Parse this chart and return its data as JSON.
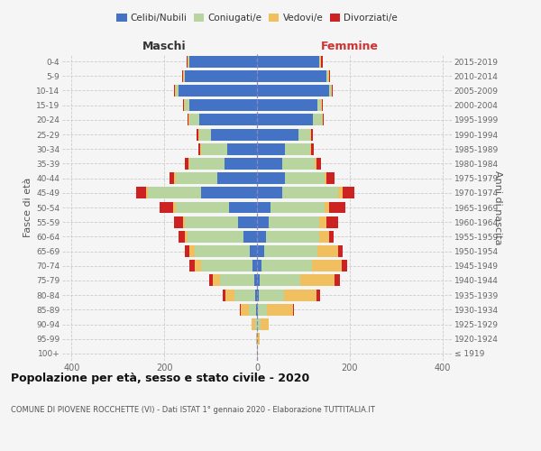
{
  "age_groups": [
    "100+",
    "95-99",
    "90-94",
    "85-89",
    "80-84",
    "75-79",
    "70-74",
    "65-69",
    "60-64",
    "55-59",
    "50-54",
    "45-49",
    "40-44",
    "35-39",
    "30-34",
    "25-29",
    "20-24",
    "15-19",
    "10-14",
    "5-9",
    "0-4"
  ],
  "birth_years": [
    "≤ 1919",
    "1920-1924",
    "1925-1929",
    "1930-1934",
    "1935-1939",
    "1940-1944",
    "1945-1949",
    "1950-1954",
    "1955-1959",
    "1960-1964",
    "1965-1969",
    "1970-1974",
    "1975-1979",
    "1980-1984",
    "1985-1989",
    "1990-1994",
    "1995-1999",
    "2000-2004",
    "2005-2009",
    "2010-2014",
    "2015-2019"
  ],
  "colors": {
    "celibe": "#4472c4",
    "coniugato": "#b8d5a0",
    "vedovo": "#f0c060",
    "divorziato": "#cc2222"
  },
  "maschi": {
    "celibe": [
      0,
      0,
      0,
      2,
      4,
      5,
      10,
      15,
      30,
      40,
      60,
      120,
      85,
      70,
      65,
      100,
      125,
      145,
      170,
      155,
      145
    ],
    "coniugato": [
      0,
      0,
      3,
      15,
      45,
      75,
      110,
      120,
      120,
      115,
      115,
      115,
      90,
      75,
      55,
      25,
      20,
      10,
      5,
      3,
      2
    ],
    "vedovo": [
      0,
      1,
      8,
      18,
      20,
      15,
      15,
      10,
      5,
      5,
      5,
      5,
      3,
      2,
      2,
      2,
      2,
      2,
      2,
      2,
      2
    ],
    "divorziato": [
      0,
      0,
      0,
      2,
      5,
      8,
      10,
      10,
      15,
      18,
      30,
      20,
      10,
      8,
      5,
      3,
      2,
      2,
      2,
      2,
      2
    ]
  },
  "femmine": {
    "nubile": [
      0,
      0,
      0,
      2,
      4,
      5,
      10,
      15,
      20,
      25,
      30,
      55,
      60,
      55,
      60,
      90,
      120,
      130,
      155,
      150,
      135
    ],
    "coniugata": [
      0,
      1,
      8,
      20,
      55,
      88,
      108,
      115,
      115,
      110,
      115,
      120,
      85,
      70,
      55,
      25,
      20,
      8,
      5,
      3,
      2
    ],
    "vedova": [
      2,
      5,
      18,
      55,
      70,
      75,
      65,
      45,
      20,
      15,
      10,
      10,
      5,
      3,
      2,
      2,
      2,
      2,
      2,
      2,
      2
    ],
    "divorziata": [
      0,
      0,
      0,
      2,
      8,
      10,
      12,
      10,
      10,
      25,
      35,
      25,
      18,
      10,
      5,
      3,
      2,
      2,
      2,
      2,
      2
    ]
  },
  "xlim": 420,
  "title": "Popolazione per età, sesso e stato civile - 2020",
  "subtitle": "COMUNE DI PIOVENE ROCCHETTE (VI) - Dati ISTAT 1° gennaio 2020 - Elaborazione TUTTITALIA.IT",
  "ylabel_left": "Fasce di età",
  "ylabel_right": "Anni di nascita",
  "xlabel_maschi": "Maschi",
  "xlabel_femmine": "Femmine",
  "legend_labels": [
    "Celibi/Nubili",
    "Coniugati/e",
    "Vedovi/e",
    "Divorziati/e"
  ],
  "background_color": "#f5f5f5"
}
